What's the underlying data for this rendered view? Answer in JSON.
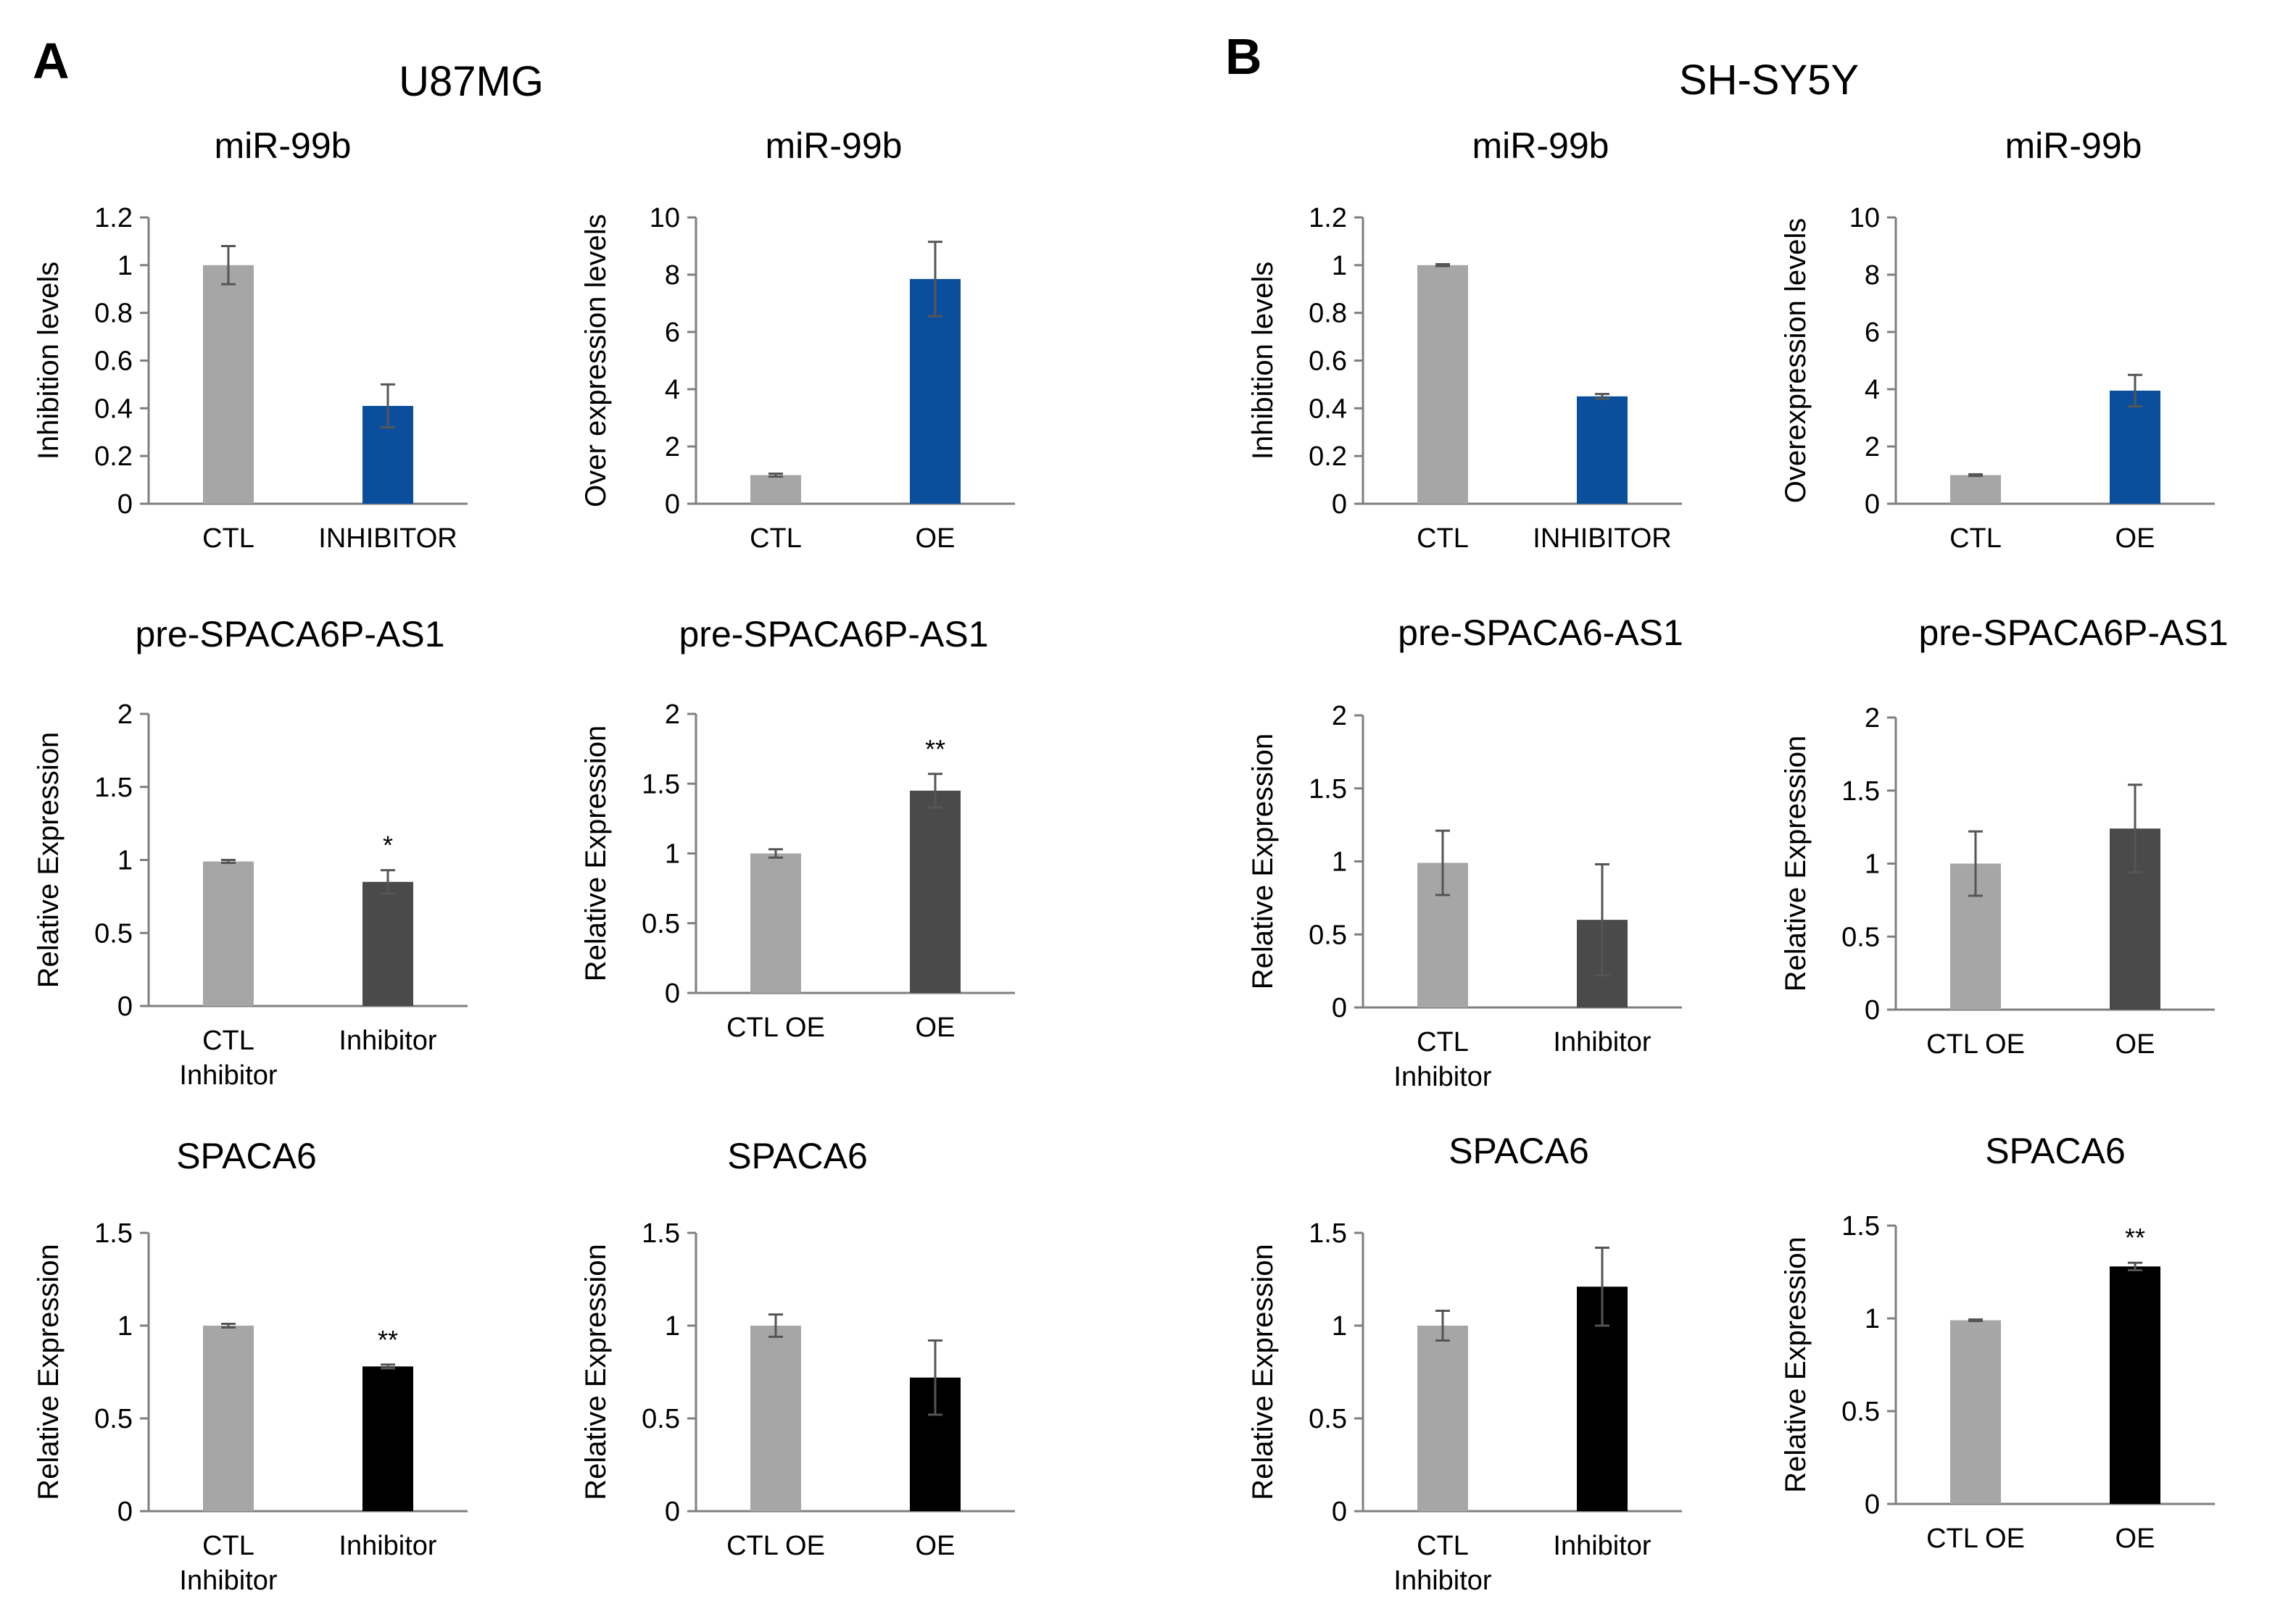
{
  "panels": [
    {
      "letter": "A",
      "title": "U87MG"
    },
    {
      "letter": "B",
      "title": "SH-SY5Y"
    }
  ],
  "colors": {
    "ctl": "#a6a6a6",
    "blue": "#0b4f9c",
    "dark": "#4a4a4a",
    "black": "#000000",
    "axis": "#7f7f7f",
    "error": "#555555"
  },
  "chart_data": [
    {
      "type": "bar",
      "panel": "A",
      "title": "miR-99b",
      "ylabel": "Inhibition levels",
      "categories": [
        [
          "CTL"
        ],
        [
          "INHIBITOR"
        ]
      ],
      "values": [
        1.0,
        0.41
      ],
      "errors": [
        0.08,
        0.09
      ],
      "ylim": [
        0,
        1.2
      ],
      "yticks": [
        0,
        0.2,
        0.4,
        0.6,
        0.8,
        1,
        1.2
      ],
      "ytick_labels": [
        "0",
        "0.2",
        "0.4",
        "0.6",
        "0.8",
        "1",
        "1.2"
      ],
      "colors": [
        "#a6a6a6",
        "#0b4f9c"
      ],
      "significance": [
        "",
        ""
      ]
    },
    {
      "type": "bar",
      "panel": "A",
      "title": "miR-99b",
      "ylabel": "Over expression levels",
      "categories": [
        [
          "CTL"
        ],
        [
          "OE"
        ]
      ],
      "values": [
        1.0,
        7.85
      ],
      "errors": [
        0.05,
        1.3
      ],
      "ylim": [
        0,
        10
      ],
      "yticks": [
        0,
        2,
        4,
        6,
        8,
        10
      ],
      "ytick_labels": [
        "0",
        "2",
        "4",
        "6",
        "8",
        "10"
      ],
      "colors": [
        "#a6a6a6",
        "#0b4f9c"
      ],
      "significance": [
        "",
        ""
      ]
    },
    {
      "type": "bar",
      "panel": "B",
      "title": "miR-99b",
      "ylabel": "Inhibition levels",
      "categories": [
        [
          "CTL"
        ],
        [
          "INHIBITOR"
        ]
      ],
      "values": [
        1.0,
        0.45
      ],
      "errors": [
        0.004,
        0.01
      ],
      "ylim": [
        0,
        1.2
      ],
      "yticks": [
        0,
        0.2,
        0.4,
        0.6,
        0.8,
        1,
        1.2
      ],
      "ytick_labels": [
        "0",
        "0.2",
        "0.4",
        "0.6",
        "0.8",
        "1",
        "1.2"
      ],
      "colors": [
        "#a6a6a6",
        "#0b4f9c"
      ],
      "significance": [
        "",
        ""
      ]
    },
    {
      "type": "bar",
      "panel": "B",
      "title": "miR-99b",
      "ylabel": "Overexpression levels",
      "categories": [
        [
          "CTL"
        ],
        [
          "OE"
        ]
      ],
      "values": [
        1.0,
        3.95
      ],
      "errors": [
        0.03,
        0.55
      ],
      "ylim": [
        0,
        10
      ],
      "yticks": [
        0,
        2,
        4,
        6,
        8,
        10
      ],
      "ytick_labels": [
        "0",
        "2",
        "4",
        "6",
        "8",
        "10"
      ],
      "colors": [
        "#a6a6a6",
        "#0b4f9c"
      ],
      "significance": [
        "",
        ""
      ]
    },
    {
      "type": "bar",
      "panel": "A",
      "title": "pre-SPACA6P-AS1",
      "ylabel": "Relative Expression",
      "categories": [
        [
          "CTL",
          "Inhibitor"
        ],
        [
          "Inhibitor"
        ]
      ],
      "values": [
        0.99,
        0.85
      ],
      "errors": [
        0.01,
        0.08
      ],
      "ylim": [
        0,
        2
      ],
      "yticks": [
        0,
        0.5,
        1,
        1.5,
        2
      ],
      "ytick_labels": [
        "0",
        "0.5",
        "1",
        "1.5",
        "2"
      ],
      "colors": [
        "#a6a6a6",
        "#4a4a4a"
      ],
      "significance": [
        "",
        "*"
      ]
    },
    {
      "type": "bar",
      "panel": "A",
      "title": "pre-SPACA6P-AS1",
      "ylabel": "Relative Expression",
      "categories": [
        [
          "CTL OE"
        ],
        [
          "OE"
        ]
      ],
      "values": [
        1.0,
        1.45
      ],
      "errors": [
        0.03,
        0.12
      ],
      "ylim": [
        0,
        2
      ],
      "yticks": [
        0,
        0.5,
        1,
        1.5,
        2
      ],
      "ytick_labels": [
        "0",
        "0.5",
        "1",
        "1.5",
        "2"
      ],
      "colors": [
        "#a6a6a6",
        "#4a4a4a"
      ],
      "significance": [
        "",
        "**"
      ]
    },
    {
      "type": "bar",
      "panel": "B",
      "title": "pre-SPACA6-AS1",
      "ylabel": "Relative Expression",
      "categories": [
        [
          "CTL",
          "Inhibitor"
        ],
        [
          "Inhibitor"
        ]
      ],
      "values": [
        0.99,
        0.6
      ],
      "errors": [
        0.22,
        0.38
      ],
      "ylim": [
        0,
        2
      ],
      "yticks": [
        0,
        0.5,
        1,
        1.5,
        2
      ],
      "ytick_labels": [
        "0",
        "0.5",
        "1",
        "1.5",
        "2"
      ],
      "colors": [
        "#a6a6a6",
        "#4a4a4a"
      ],
      "significance": [
        "",
        ""
      ]
    },
    {
      "type": "bar",
      "panel": "B",
      "title": "pre-SPACA6P-AS1",
      "ylabel": "Relative Expression",
      "categories": [
        [
          "CTL OE"
        ],
        [
          "OE"
        ]
      ],
      "values": [
        1.0,
        1.24
      ],
      "errors": [
        0.22,
        0.3
      ],
      "ylim": [
        0,
        2
      ],
      "yticks": [
        0,
        0.5,
        1,
        1.5,
        2
      ],
      "ytick_labels": [
        "0",
        "0.5",
        "1",
        "1.5",
        "2"
      ],
      "colors": [
        "#a6a6a6",
        "#4a4a4a"
      ],
      "significance": [
        "",
        ""
      ]
    },
    {
      "type": "bar",
      "panel": "A",
      "title": "SPACA6",
      "ylabel": "Relative Expression",
      "categories": [
        [
          "CTL",
          "Inhibitor"
        ],
        [
          "Inhibitor"
        ]
      ],
      "values": [
        1.0,
        0.78
      ],
      "errors": [
        0.01,
        0.01
      ],
      "ylim": [
        0,
        1.5
      ],
      "yticks": [
        0,
        0.5,
        1,
        1.5
      ],
      "ytick_labels": [
        "0",
        "0.5",
        "1",
        "1.5"
      ],
      "colors": [
        "#a6a6a6",
        "#000000"
      ],
      "significance": [
        "",
        "**"
      ]
    },
    {
      "type": "bar",
      "panel": "A",
      "title": "SPACA6",
      "ylabel": "Relative Expression",
      "categories": [
        [
          "CTL OE"
        ],
        [
          "OE"
        ]
      ],
      "values": [
        1.0,
        0.72
      ],
      "errors": [
        0.06,
        0.2
      ],
      "ylim": [
        0,
        1.5
      ],
      "yticks": [
        0,
        0.5,
        1,
        1.5
      ],
      "ytick_labels": [
        "0",
        "0.5",
        "1",
        "1.5"
      ],
      "colors": [
        "#a6a6a6",
        "#000000"
      ],
      "significance": [
        "",
        ""
      ]
    },
    {
      "type": "bar",
      "panel": "B",
      "title": "SPACA6",
      "ylabel": "Relative Expression",
      "categories": [
        [
          "CTL",
          "Inhibitor"
        ],
        [
          "Inhibitor"
        ]
      ],
      "values": [
        1.0,
        1.21
      ],
      "errors": [
        0.08,
        0.21
      ],
      "ylim": [
        0,
        1.5
      ],
      "yticks": [
        0,
        0.5,
        1,
        1.5
      ],
      "ytick_labels": [
        "0",
        "0.5",
        "1",
        "1.5"
      ],
      "colors": [
        "#a6a6a6",
        "#000000"
      ],
      "significance": [
        "",
        ""
      ]
    },
    {
      "type": "bar",
      "panel": "B",
      "title": "SPACA6",
      "ylabel": "Relative Expression",
      "categories": [
        [
          "CTL OE"
        ],
        [
          "OE"
        ]
      ],
      "values": [
        0.99,
        1.28
      ],
      "errors": [
        0.004,
        0.02
      ],
      "ylim": [
        0,
        1.5
      ],
      "yticks": [
        0,
        0.5,
        1,
        1.5
      ],
      "ytick_labels": [
        "0",
        "0.5",
        "1",
        "1.5"
      ],
      "colors": [
        "#a6a6a6",
        "#000000"
      ],
      "significance": [
        "",
        "**"
      ]
    }
  ]
}
